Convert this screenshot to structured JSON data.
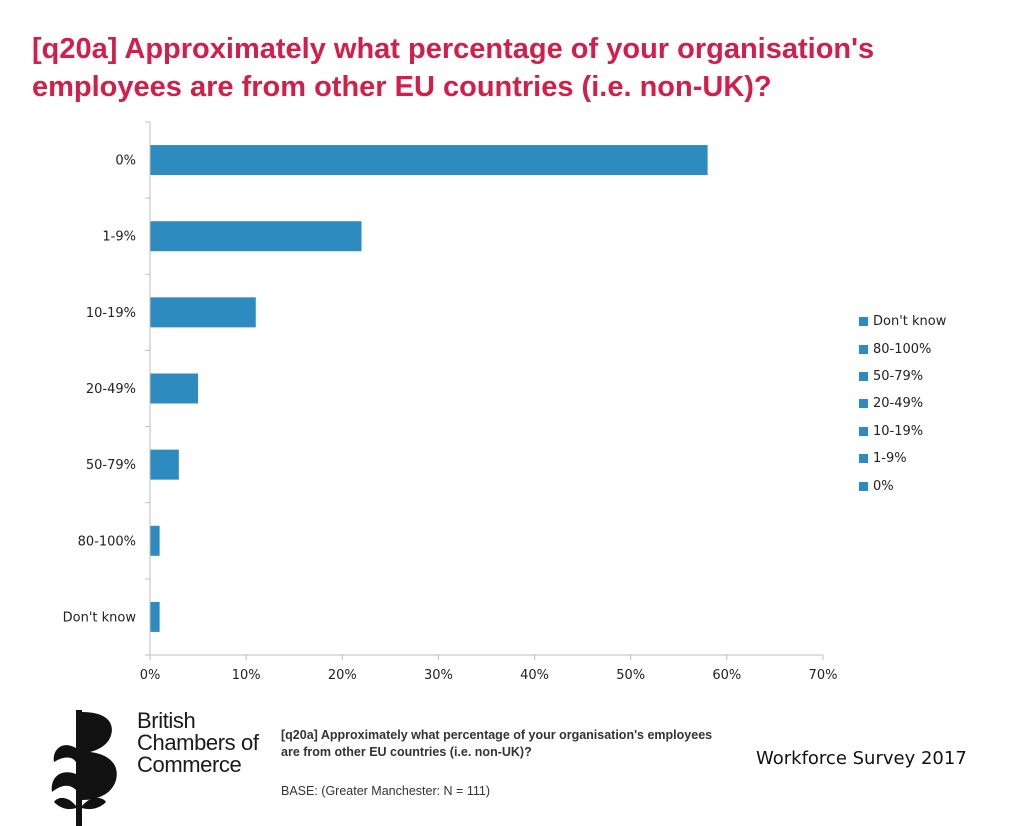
{
  "title": "[q20a] Approximately what percentage of your organisation's employees are from other EU countries (i.e. non-UK)?",
  "chart_data": {
    "type": "bar",
    "orientation": "horizontal",
    "categories": [
      "0%",
      "1-9%",
      "10-19%",
      "20-49%",
      "50-79%",
      "80-100%",
      "Don't know"
    ],
    "values": [
      58,
      22,
      11,
      5,
      3,
      1,
      1
    ],
    "xlim": [
      0,
      70
    ],
    "xticks": [
      0,
      10,
      20,
      30,
      40,
      50,
      60,
      70
    ],
    "xtick_labels": [
      "0%",
      "10%",
      "20%",
      "30%",
      "40%",
      "50%",
      "60%",
      "70%"
    ],
    "bar_color": "#2e8bc0",
    "grid": false,
    "legend_position": "right",
    "legend_entries": [
      "Don't know",
      "80-100%",
      "50-79%",
      "20-49%",
      "10-19%",
      "1-9%",
      "0%"
    ]
  },
  "branding": {
    "name_line1": "British",
    "name_line2": "Chambers of",
    "name_line3": "Commerce",
    "logo_icon": "bcc-logo-icon"
  },
  "footer": {
    "question": "[q20a] Approximately what percentage of your organisation's employees are from other EU countries (i.e. non-UK)?",
    "base": "BASE: (Greater Manchester: N = 111)",
    "survey": "Workforce Survey 2017"
  }
}
